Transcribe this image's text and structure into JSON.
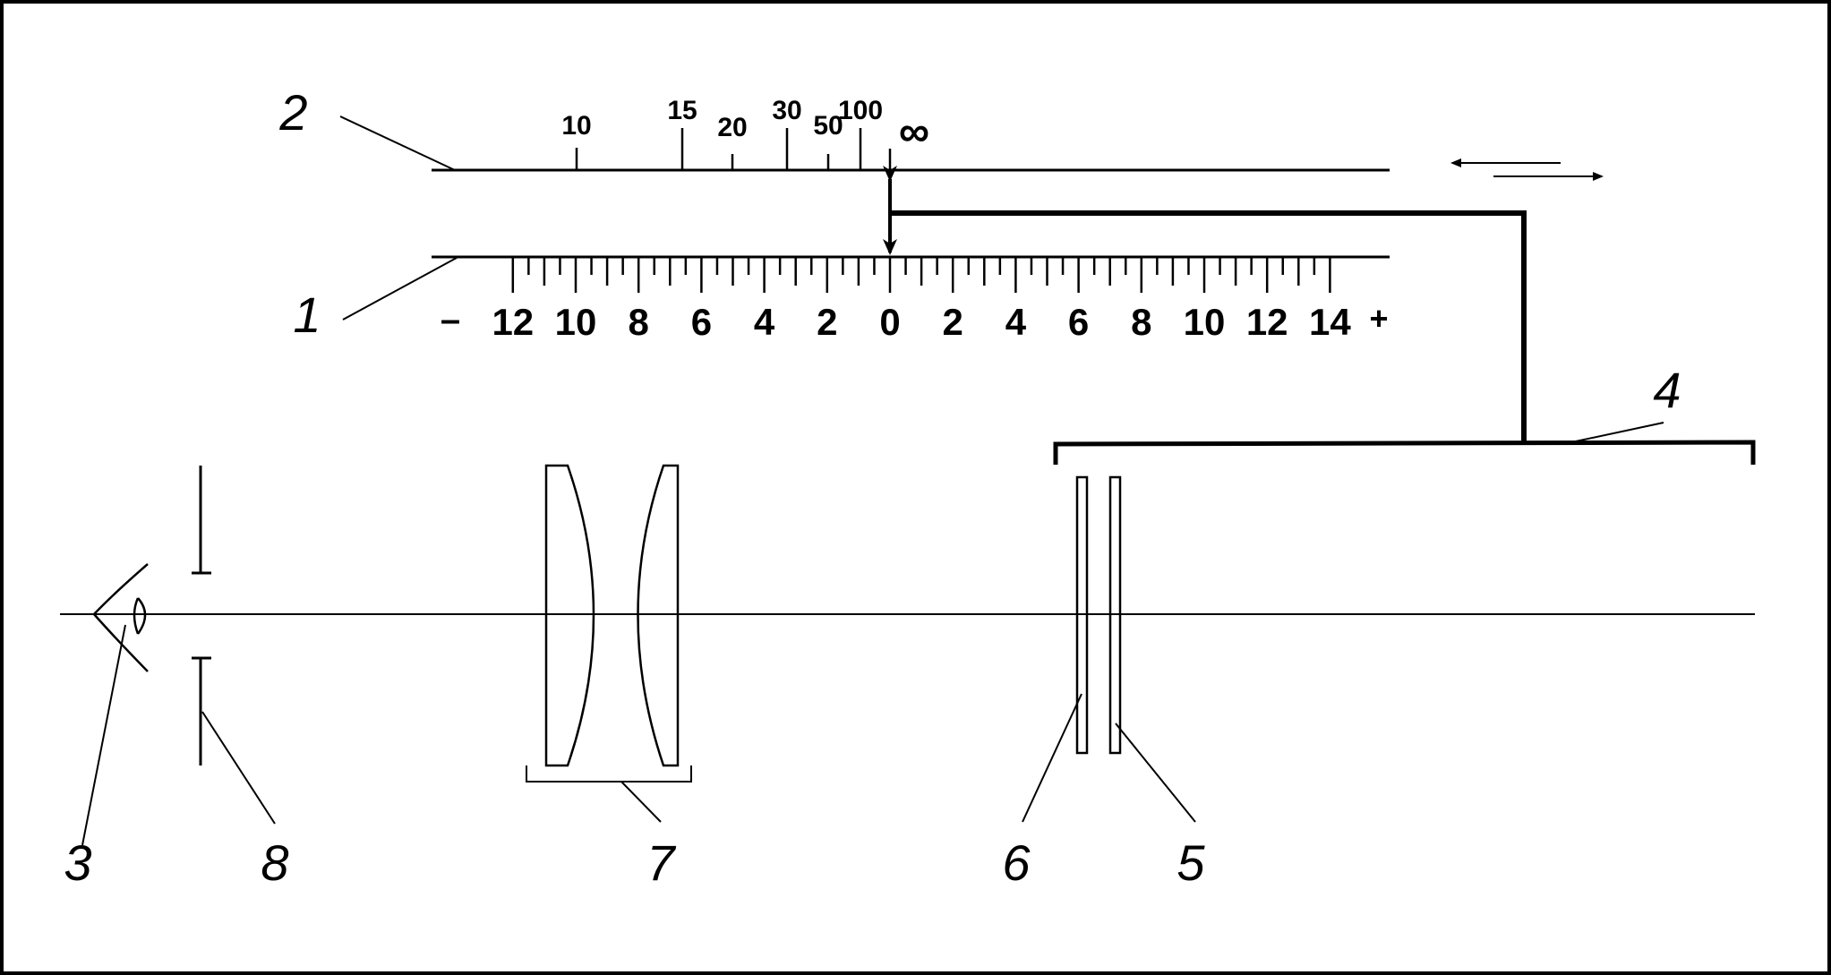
{
  "callouts": {
    "scale_1": "1",
    "scale_2": "2",
    "eye": "3",
    "carriage": "4",
    "plate_5": "5",
    "plate_6": "6",
    "lens_group": "7",
    "aperture": "8"
  },
  "distance_scale": {
    "labels": [
      "10",
      "15",
      "20",
      "30",
      "50",
      "100"
    ],
    "infinity": "∞"
  },
  "diopter_scale": {
    "minus": "–",
    "plus": "+",
    "labels": [
      "12",
      "10",
      "8",
      "6",
      "4",
      "2",
      "0",
      "2",
      "4",
      "6",
      "8",
      "10",
      "12",
      "14"
    ]
  },
  "icons": {
    "eye": "eye-icon",
    "motion": "double-arrow-icon",
    "pointer": "vertical-double-arrow-icon"
  }
}
